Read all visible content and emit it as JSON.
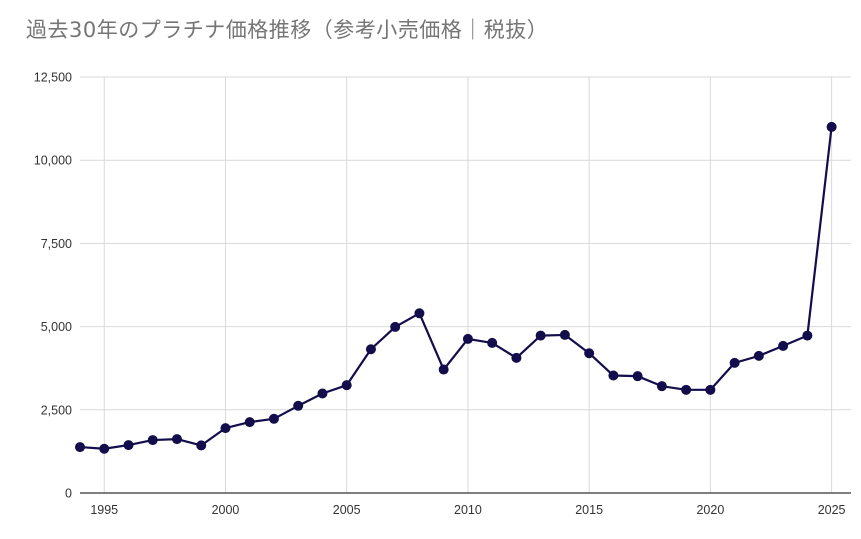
{
  "chart_data": {
    "type": "line",
    "title": "過去30年のプラチナ価格推移（参考小売価格｜税抜）",
    "xlabel": "",
    "ylabel": "",
    "x": [
      1994,
      1995,
      1996,
      1997,
      1998,
      1999,
      2000,
      2001,
      2002,
      2003,
      2004,
      2005,
      2006,
      2007,
      2008,
      2009,
      2010,
      2011,
      2012,
      2013,
      2014,
      2015,
      2016,
      2017,
      2018,
      2019,
      2020,
      2021,
      2022,
      2023,
      2024,
      2025
    ],
    "series": [
      {
        "values": [
          1380,
          1330,
          1440,
          1590,
          1620,
          1430,
          1950,
          2130,
          2230,
          2620,
          2990,
          3240,
          4320,
          4990,
          5400,
          3710,
          4630,
          4510,
          4060,
          4730,
          4750,
          4200,
          3530,
          3510,
          3210,
          3100,
          3100,
          3910,
          4120,
          4420,
          4730,
          11000
        ],
        "color": "#130d4b"
      }
    ],
    "ylim": [
      0,
      12500
    ],
    "xlim": [
      1994,
      2025.8
    ],
    "y_ticks": [
      "0",
      "2,500",
      "5,000",
      "7,500",
      "10,000",
      "12,500"
    ],
    "y_tick_values": [
      0,
      2500,
      5000,
      7500,
      10000,
      12500
    ],
    "x_ticks": [
      "1995",
      "2000",
      "2005",
      "2010",
      "2015",
      "2020",
      "2025"
    ],
    "x_tick_values": [
      1995,
      2000,
      2005,
      2010,
      2015,
      2020,
      2025
    ],
    "grid": true,
    "legend": "none"
  }
}
